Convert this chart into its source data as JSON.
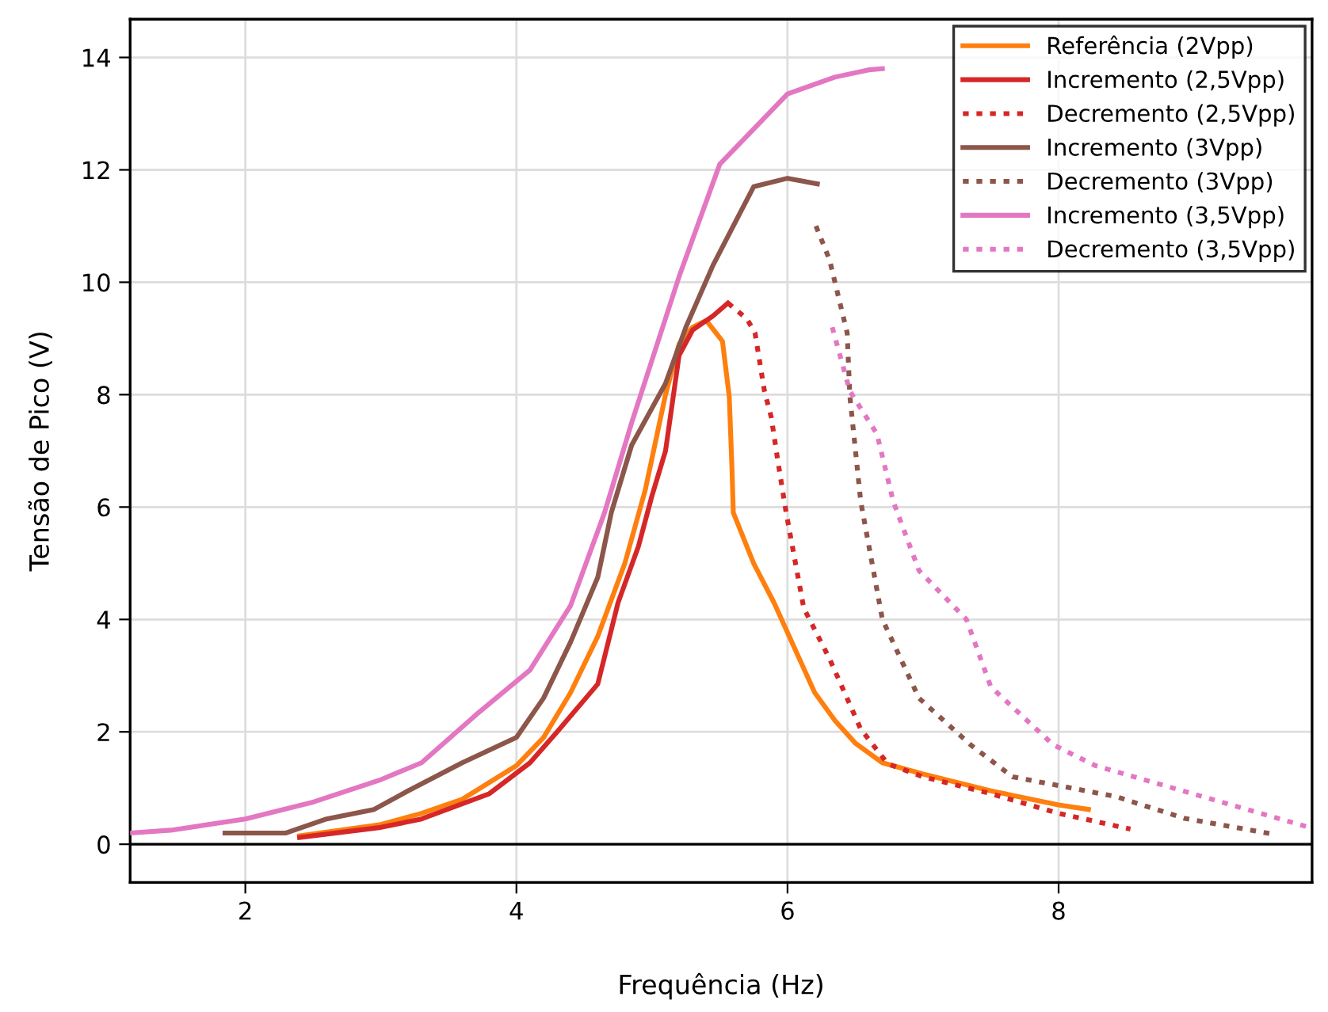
{
  "chart_data": {
    "type": "line",
    "xlabel": "Frequência (Hz)",
    "ylabel": "Tensão de Pico (V)",
    "xlim": [
      1.15,
      9.87
    ],
    "ylim": [
      -0.68,
      14.68
    ],
    "xticks": [
      2,
      4,
      6,
      8
    ],
    "yticks": [
      0,
      2,
      4,
      6,
      8,
      10,
      12,
      14
    ],
    "grid": true,
    "legend": "top right",
    "marker": "none",
    "ref_lines": [
      {
        "axis": "y",
        "value": 0,
        "color": "#000000",
        "line_style": "solid"
      }
    ],
    "series": [
      {
        "name": "Referência (2Vpp)",
        "color": "#ff7f0e",
        "line_style": "solid",
        "x": [
          2.4,
          3.0,
          3.3,
          3.6,
          4.0,
          4.2,
          4.4,
          4.6,
          4.8,
          4.95,
          5.1,
          5.2,
          5.3,
          5.4,
          5.52,
          5.57,
          5.59,
          5.6,
          5.75,
          5.9,
          6.05,
          6.2,
          6.35,
          6.5,
          6.7,
          7.0,
          7.5,
          8.0,
          8.22
        ],
        "values": [
          0.15,
          0.35,
          0.55,
          0.8,
          1.4,
          1.9,
          2.7,
          3.7,
          5.0,
          6.3,
          8.0,
          8.9,
          9.2,
          9.32,
          8.95,
          7.97,
          6.7,
          5.9,
          5.0,
          4.3,
          3.5,
          2.7,
          2.2,
          1.8,
          1.45,
          1.25,
          0.95,
          0.7,
          0.62
        ]
      },
      {
        "name": "Incremento (2,5Vpp)",
        "color": "#d62728",
        "line_style": "solid",
        "x": [
          2.4,
          3.0,
          3.3,
          3.8,
          4.1,
          4.3,
          4.6,
          4.75,
          4.9,
          5.0,
          5.1,
          5.2,
          5.3,
          5.45,
          5.56
        ],
        "values": [
          0.12,
          0.3,
          0.45,
          0.9,
          1.45,
          2.0,
          2.85,
          4.3,
          5.3,
          6.2,
          7.0,
          8.7,
          9.15,
          9.4,
          9.63
        ]
      },
      {
        "name": "Decremento (2,5Vpp)",
        "color": "#d62728",
        "line_style": "dotted",
        "x": [
          5.56,
          5.7,
          5.76,
          5.83,
          5.88,
          5.93,
          5.99,
          6.12,
          6.31,
          6.54,
          6.74,
          7.0,
          7.5,
          8.0,
          8.53
        ],
        "values": [
          9.63,
          9.35,
          9.1,
          8.06,
          7.6,
          6.8,
          5.9,
          4.2,
          3.3,
          2.05,
          1.43,
          1.2,
          0.9,
          0.55,
          0.27
        ]
      },
      {
        "name": "Incremento (3Vpp)",
        "color": "#8c564b",
        "line_style": "solid",
        "x": [
          1.85,
          2.3,
          2.6,
          2.95,
          3.2,
          3.6,
          4.0,
          4.2,
          4.4,
          4.6,
          4.7,
          4.85,
          5.1,
          5.25,
          5.45,
          5.6,
          5.75,
          6.0,
          6.22
        ],
        "values": [
          0.2,
          0.2,
          0.45,
          0.62,
          0.95,
          1.45,
          1.9,
          2.6,
          3.6,
          4.75,
          5.9,
          7.1,
          8.2,
          9.2,
          10.3,
          11.0,
          11.7,
          11.85,
          11.75
        ]
      },
      {
        "name": "Decremento (3Vpp)",
        "color": "#8c564b",
        "line_style": "dotted",
        "x": [
          6.21,
          6.31,
          6.44,
          6.46,
          6.54,
          6.7,
          6.97,
          7.35,
          7.66,
          8.42,
          8.93,
          9.58
        ],
        "values": [
          11.0,
          10.4,
          9.1,
          7.97,
          6.1,
          4.0,
          2.6,
          1.77,
          1.2,
          0.85,
          0.46,
          0.18
        ]
      },
      {
        "name": "Incremento (3,5Vpp)",
        "color": "#e377c2",
        "line_style": "solid",
        "x": [
          1.15,
          1.45,
          2.0,
          2.5,
          3.0,
          3.3,
          3.7,
          4.1,
          4.4,
          4.65,
          4.85,
          5.2,
          5.5,
          6.0,
          6.35,
          6.6,
          6.7
        ],
        "values": [
          0.2,
          0.25,
          0.45,
          0.75,
          1.15,
          1.45,
          2.3,
          3.1,
          4.25,
          5.9,
          7.5,
          10.1,
          12.1,
          13.35,
          13.65,
          13.78,
          13.8
        ]
      },
      {
        "name": "Decremento (3,5Vpp)",
        "color": "#e377c2",
        "line_style": "dotted",
        "x": [
          6.33,
          6.46,
          6.66,
          6.78,
          6.97,
          7.32,
          7.5,
          7.96,
          8.27,
          9.85
        ],
        "values": [
          9.2,
          8.06,
          7.3,
          6.1,
          4.87,
          4.0,
          2.8,
          1.77,
          1.4,
          0.3
        ]
      }
    ]
  }
}
